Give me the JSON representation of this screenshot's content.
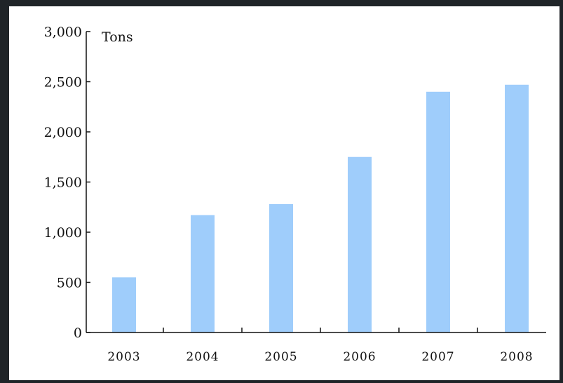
{
  "chart_data": {
    "type": "bar",
    "title": "",
    "xlabel": "",
    "ylabel": "Tons",
    "categories": [
      "2003",
      "2004",
      "2005",
      "2006",
      "2007",
      "2008"
    ],
    "values": [
      550,
      1170,
      1280,
      1750,
      2400,
      2470
    ],
    "ylim": [
      0,
      3000
    ],
    "yticks": [
      "0",
      "500",
      "1,000",
      "1,500",
      "2,000",
      "2,500",
      "3,000"
    ],
    "ytick_values": [
      0,
      500,
      1000,
      1500,
      2000,
      2500,
      3000
    ],
    "grid": false,
    "bar_color": "#9fcdfb"
  }
}
